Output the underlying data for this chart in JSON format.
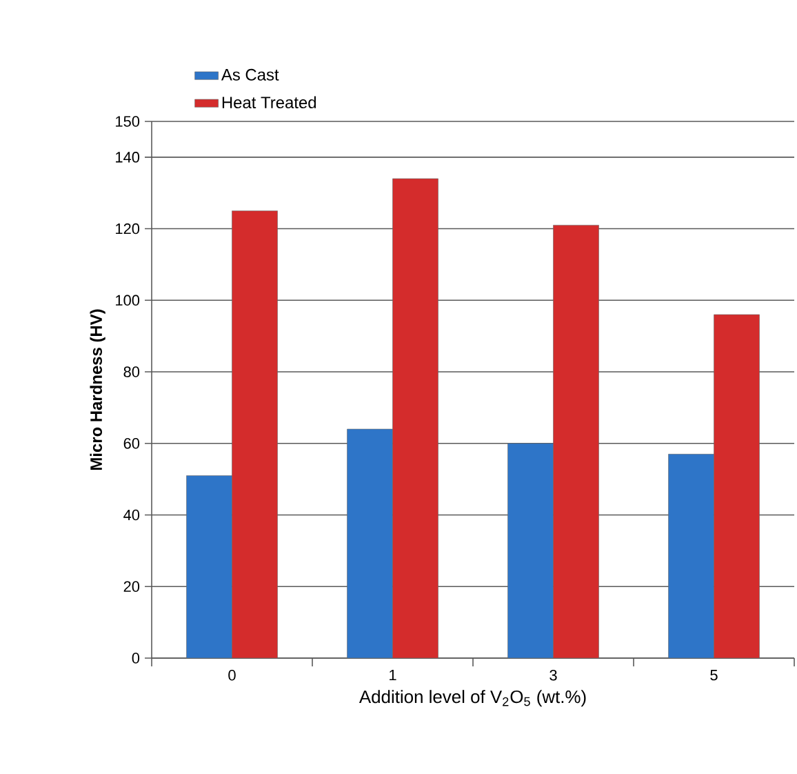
{
  "chart_data": {
    "type": "bar",
    "xlabel": "Addition level of V$_{2}$O$_{5}$  (wt.%)",
    "ylabel": "Micro Hardness (HV)",
    "categories": [
      "0",
      "1",
      "3",
      "5"
    ],
    "series": [
      {
        "name": "As Cast",
        "color": "#2e75c8",
        "values": [
          51,
          64,
          60,
          57
        ]
      },
      {
        "name": "Heat Treated",
        "color": "#d42c2c",
        "values": [
          125,
          134,
          121,
          96
        ]
      }
    ],
    "ylim": [
      0,
      150
    ],
    "yticks": [
      0,
      20,
      40,
      60,
      80,
      100,
      120,
      140,
      150
    ],
    "grid": "y",
    "legend": "top left"
  }
}
